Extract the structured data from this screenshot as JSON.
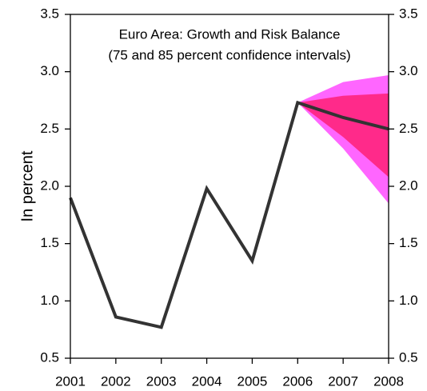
{
  "chart_data": {
    "type": "line",
    "title": "Euro Area: Growth and Risk Balance",
    "subtitle": "(75 and 85 percent confidence intervals)",
    "ylabel": "In percent",
    "categories": [
      "2001",
      "2002",
      "2003",
      "2004",
      "2005",
      "2006",
      "2007",
      "2008"
    ],
    "values": [
      1.9,
      0.86,
      0.77,
      1.98,
      1.35,
      2.73,
      2.6,
      2.5
    ],
    "color": "#333333",
    "bands": [
      {
        "color": "#ff66ff",
        "upper": [
          null,
          null,
          null,
          null,
          null,
          2.73,
          2.91,
          2.97
        ],
        "lower": [
          null,
          null,
          null,
          null,
          null,
          2.73,
          2.33,
          1.85
        ]
      },
      {
        "color": "#ff2a8a",
        "upper": [
          null,
          null,
          null,
          null,
          null,
          2.73,
          2.79,
          2.81
        ],
        "lower": [
          null,
          null,
          null,
          null,
          null,
          2.73,
          2.43,
          2.08
        ]
      }
    ],
    "ylim": [
      0.5,
      3.5
    ],
    "yticks": [
      {
        "value": 0.5,
        "label": "0.5"
      },
      {
        "value": 1,
        "label": "1.0"
      },
      {
        "value": 1.5,
        "label": "1.5"
      },
      {
        "value": 2,
        "label": "2.0"
      },
      {
        "value": 2.5,
        "label": "2.5"
      },
      {
        "value": 3,
        "label": "3.0"
      },
      {
        "value": 3.5,
        "label": "3.5"
      }
    ],
    "y2lim": [
      0.5,
      3.5
    ],
    "y2ticks": [
      {
        "value": 0.5,
        "label": "0.5"
      },
      {
        "value": 1,
        "label": "1.0"
      },
      {
        "value": 1.5,
        "label": "1.5"
      },
      {
        "value": 2,
        "label": "2.0"
      },
      {
        "value": 2.5,
        "label": "2.5"
      },
      {
        "value": 3,
        "label": "3.0"
      },
      {
        "value": 3.5,
        "label": "3.5"
      }
    ]
  }
}
